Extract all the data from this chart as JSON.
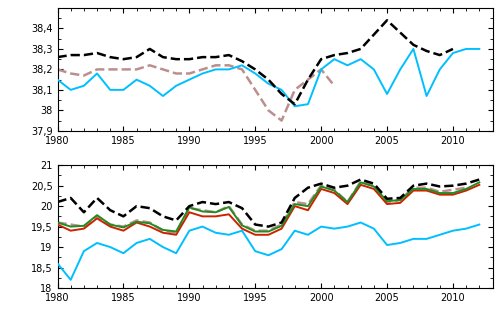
{
  "years": [
    1980,
    1981,
    1982,
    1983,
    1984,
    1985,
    1986,
    1987,
    1988,
    1989,
    1990,
    1991,
    1992,
    1993,
    1994,
    1995,
    1996,
    1997,
    1998,
    1999,
    2000,
    2001,
    2002,
    2003,
    2004,
    2005,
    2006,
    2007,
    2008,
    2009,
    2010,
    2011,
    2012
  ],
  "sss_rcsm4": [
    38.15,
    38.1,
    38.12,
    38.18,
    38.1,
    38.1,
    38.15,
    38.12,
    38.07,
    38.12,
    38.15,
    38.18,
    38.2,
    38.2,
    38.22,
    38.18,
    38.13,
    38.1,
    38.02,
    38.03,
    38.2,
    38.25,
    38.22,
    38.25,
    38.2,
    38.08,
    38.2,
    38.3,
    38.07,
    38.2,
    38.28,
    38.3,
    38.3
  ],
  "sss_en3": [
    38.26,
    38.27,
    38.27,
    38.28,
    38.26,
    38.25,
    38.26,
    38.3,
    38.26,
    38.25,
    38.25,
    38.26,
    38.26,
    38.27,
    38.24,
    38.2,
    38.15,
    38.08,
    38.03,
    38.15,
    38.25,
    38.27,
    38.28,
    38.3,
    38.37,
    38.44,
    38.38,
    38.32,
    38.29,
    38.27,
    38.3,
    null,
    null
  ],
  "sss_rixen": [
    38.2,
    38.18,
    38.17,
    38.2,
    38.2,
    38.2,
    38.2,
    38.22,
    38.2,
    38.18,
    38.18,
    38.2,
    38.22,
    38.22,
    38.2,
    38.1,
    38.0,
    37.95,
    38.1,
    38.15,
    38.2,
    38.12,
    null,
    null,
    null,
    null,
    null,
    null,
    null,
    null,
    null,
    null,
    null
  ],
  "sst_rcsm4": [
    18.6,
    18.2,
    18.9,
    19.1,
    19.0,
    18.85,
    19.1,
    19.2,
    19.0,
    18.85,
    19.4,
    19.5,
    19.35,
    19.3,
    19.4,
    18.9,
    18.8,
    18.95,
    19.4,
    19.3,
    19.5,
    19.45,
    19.5,
    19.6,
    19.45,
    19.05,
    19.1,
    19.2,
    19.2,
    19.3,
    19.4,
    19.45,
    19.55
  ],
  "sst_en3": [
    20.1,
    20.2,
    19.85,
    20.2,
    19.9,
    19.75,
    20.0,
    19.95,
    19.75,
    19.65,
    20.0,
    20.1,
    20.05,
    20.1,
    19.95,
    19.55,
    19.5,
    19.6,
    20.2,
    20.45,
    20.55,
    20.45,
    20.5,
    20.65,
    20.55,
    20.18,
    20.2,
    20.5,
    20.55,
    20.48,
    20.5,
    20.55,
    20.65
  ],
  "sst_rixen": [
    19.6,
    19.55,
    19.5,
    19.75,
    19.55,
    19.5,
    19.65,
    19.6,
    19.4,
    19.35,
    19.95,
    19.9,
    19.85,
    20.0,
    19.55,
    19.4,
    19.4,
    19.55,
    20.1,
    20.05,
    20.5,
    20.4,
    20.1,
    20.6,
    20.5,
    20.1,
    20.15,
    20.45,
    20.45,
    20.35,
    20.4,
    20.45,
    null
  ],
  "sst_marullo": [
    19.55,
    19.4,
    19.45,
    19.7,
    19.5,
    19.4,
    19.6,
    19.5,
    19.35,
    19.3,
    19.85,
    19.75,
    19.75,
    19.8,
    19.45,
    19.3,
    19.3,
    19.45,
    20.0,
    19.9,
    20.42,
    20.32,
    20.05,
    20.52,
    20.42,
    20.05,
    20.08,
    20.38,
    20.38,
    20.28,
    20.28,
    20.38,
    20.52
  ],
  "sst_era": [
    19.6,
    19.5,
    19.52,
    19.78,
    19.55,
    19.48,
    19.62,
    19.58,
    19.42,
    19.38,
    19.97,
    19.87,
    19.85,
    19.98,
    19.53,
    19.38,
    19.38,
    19.52,
    20.05,
    20.0,
    20.48,
    20.38,
    20.1,
    20.58,
    20.48,
    20.12,
    20.15,
    20.42,
    20.42,
    20.32,
    20.32,
    20.42,
    20.58
  ],
  "sss_ylim": [
    37.9,
    38.5
  ],
  "sss_yticks": [
    37.9,
    38.0,
    38.1,
    38.2,
    38.3,
    38.4
  ],
  "sss_ytick_labels": [
    "37,9",
    "38",
    "38,1",
    "38,2",
    "38,3",
    "38,4"
  ],
  "sst_ylim": [
    18.0,
    21.0
  ],
  "sst_yticks": [
    18.0,
    18.5,
    19.0,
    19.5,
    20.0,
    20.5,
    21.0
  ],
  "sst_ytick_labels": [
    "18",
    "18,5",
    "19",
    "19,5",
    "20",
    "20,5",
    "21"
  ],
  "xlim": [
    1980,
    2013
  ],
  "xticks": [
    1980,
    1985,
    1990,
    1995,
    2000,
    2005,
    2010
  ],
  "color_rcsm4": "#00bfff",
  "color_en3": "#000000",
  "color_rixen": "#bc8f8f",
  "color_marullo": "#cc2200",
  "color_era": "#228b22",
  "lw_solid": 1.4,
  "lw_dashed": 1.8
}
